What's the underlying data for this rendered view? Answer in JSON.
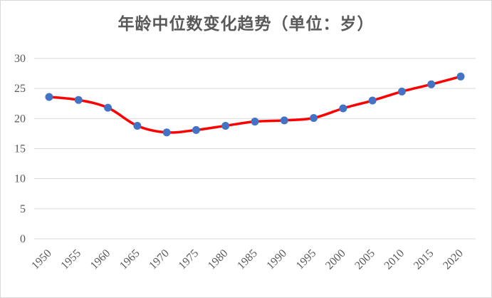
{
  "chart_data": {
    "type": "line",
    "title": "年龄中位数变化趋势（单位：岁）",
    "x": [
      1950,
      1955,
      1960,
      1965,
      1970,
      1975,
      1980,
      1985,
      1990,
      1995,
      2000,
      2005,
      2010,
      2015,
      2020
    ],
    "series": [
      {
        "values": [
          23.6,
          23.1,
          21.8,
          18.8,
          17.7,
          18.1,
          18.8,
          19.5,
          19.7,
          20.1,
          21.7,
          23.0,
          24.5,
          25.7,
          27.0
        ]
      }
    ],
    "ylim": [
      0,
      30
    ],
    "yticks": [
      0,
      5,
      10,
      15,
      20,
      25,
      30
    ],
    "grid": "horizontal",
    "legend": "none",
    "line_color": "#ff0000",
    "marker_color": "#4472c4",
    "smooth": true
  }
}
